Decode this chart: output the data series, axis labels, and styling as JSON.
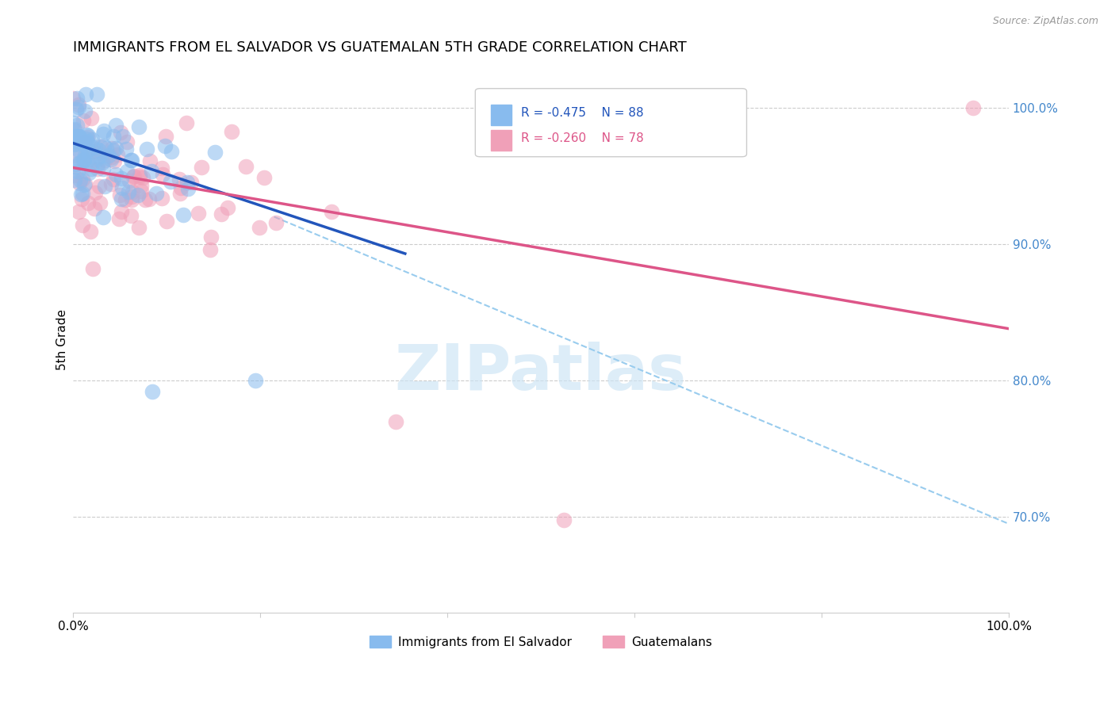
{
  "title": "IMMIGRANTS FROM EL SALVADOR VS GUATEMALAN 5TH GRADE CORRELATION CHART",
  "source": "Source: ZipAtlas.com",
  "ylabel": "5th Grade",
  "legend_blue_r": "-0.475",
  "legend_blue_n": "88",
  "legend_pink_r": "-0.260",
  "legend_pink_n": "78",
  "legend_blue_label": "Immigrants from El Salvador",
  "legend_pink_label": "Guatemalans",
  "xlim": [
    0.0,
    1.0
  ],
  "ylim": [
    0.63,
    1.03
  ],
  "blue_color": "#88bbee",
  "pink_color": "#f0a0b8",
  "blue_line_color": "#2255bb",
  "pink_line_color": "#dd5588",
  "dashed_line_color": "#99ccee",
  "watermark": "ZIPatlas",
  "right_tick_color": "#4488cc",
  "blue_line_x0": 0.0,
  "blue_line_x1": 0.355,
  "blue_line_y0": 0.974,
  "blue_line_y1": 0.893,
  "pink_line_x0": 0.0,
  "pink_line_x1": 1.0,
  "pink_line_y0": 0.956,
  "pink_line_y1": 0.838,
  "dash_line_x0": 0.215,
  "dash_line_x1": 1.0,
  "dash_line_y0": 0.92,
  "dash_line_y1": 0.695
}
